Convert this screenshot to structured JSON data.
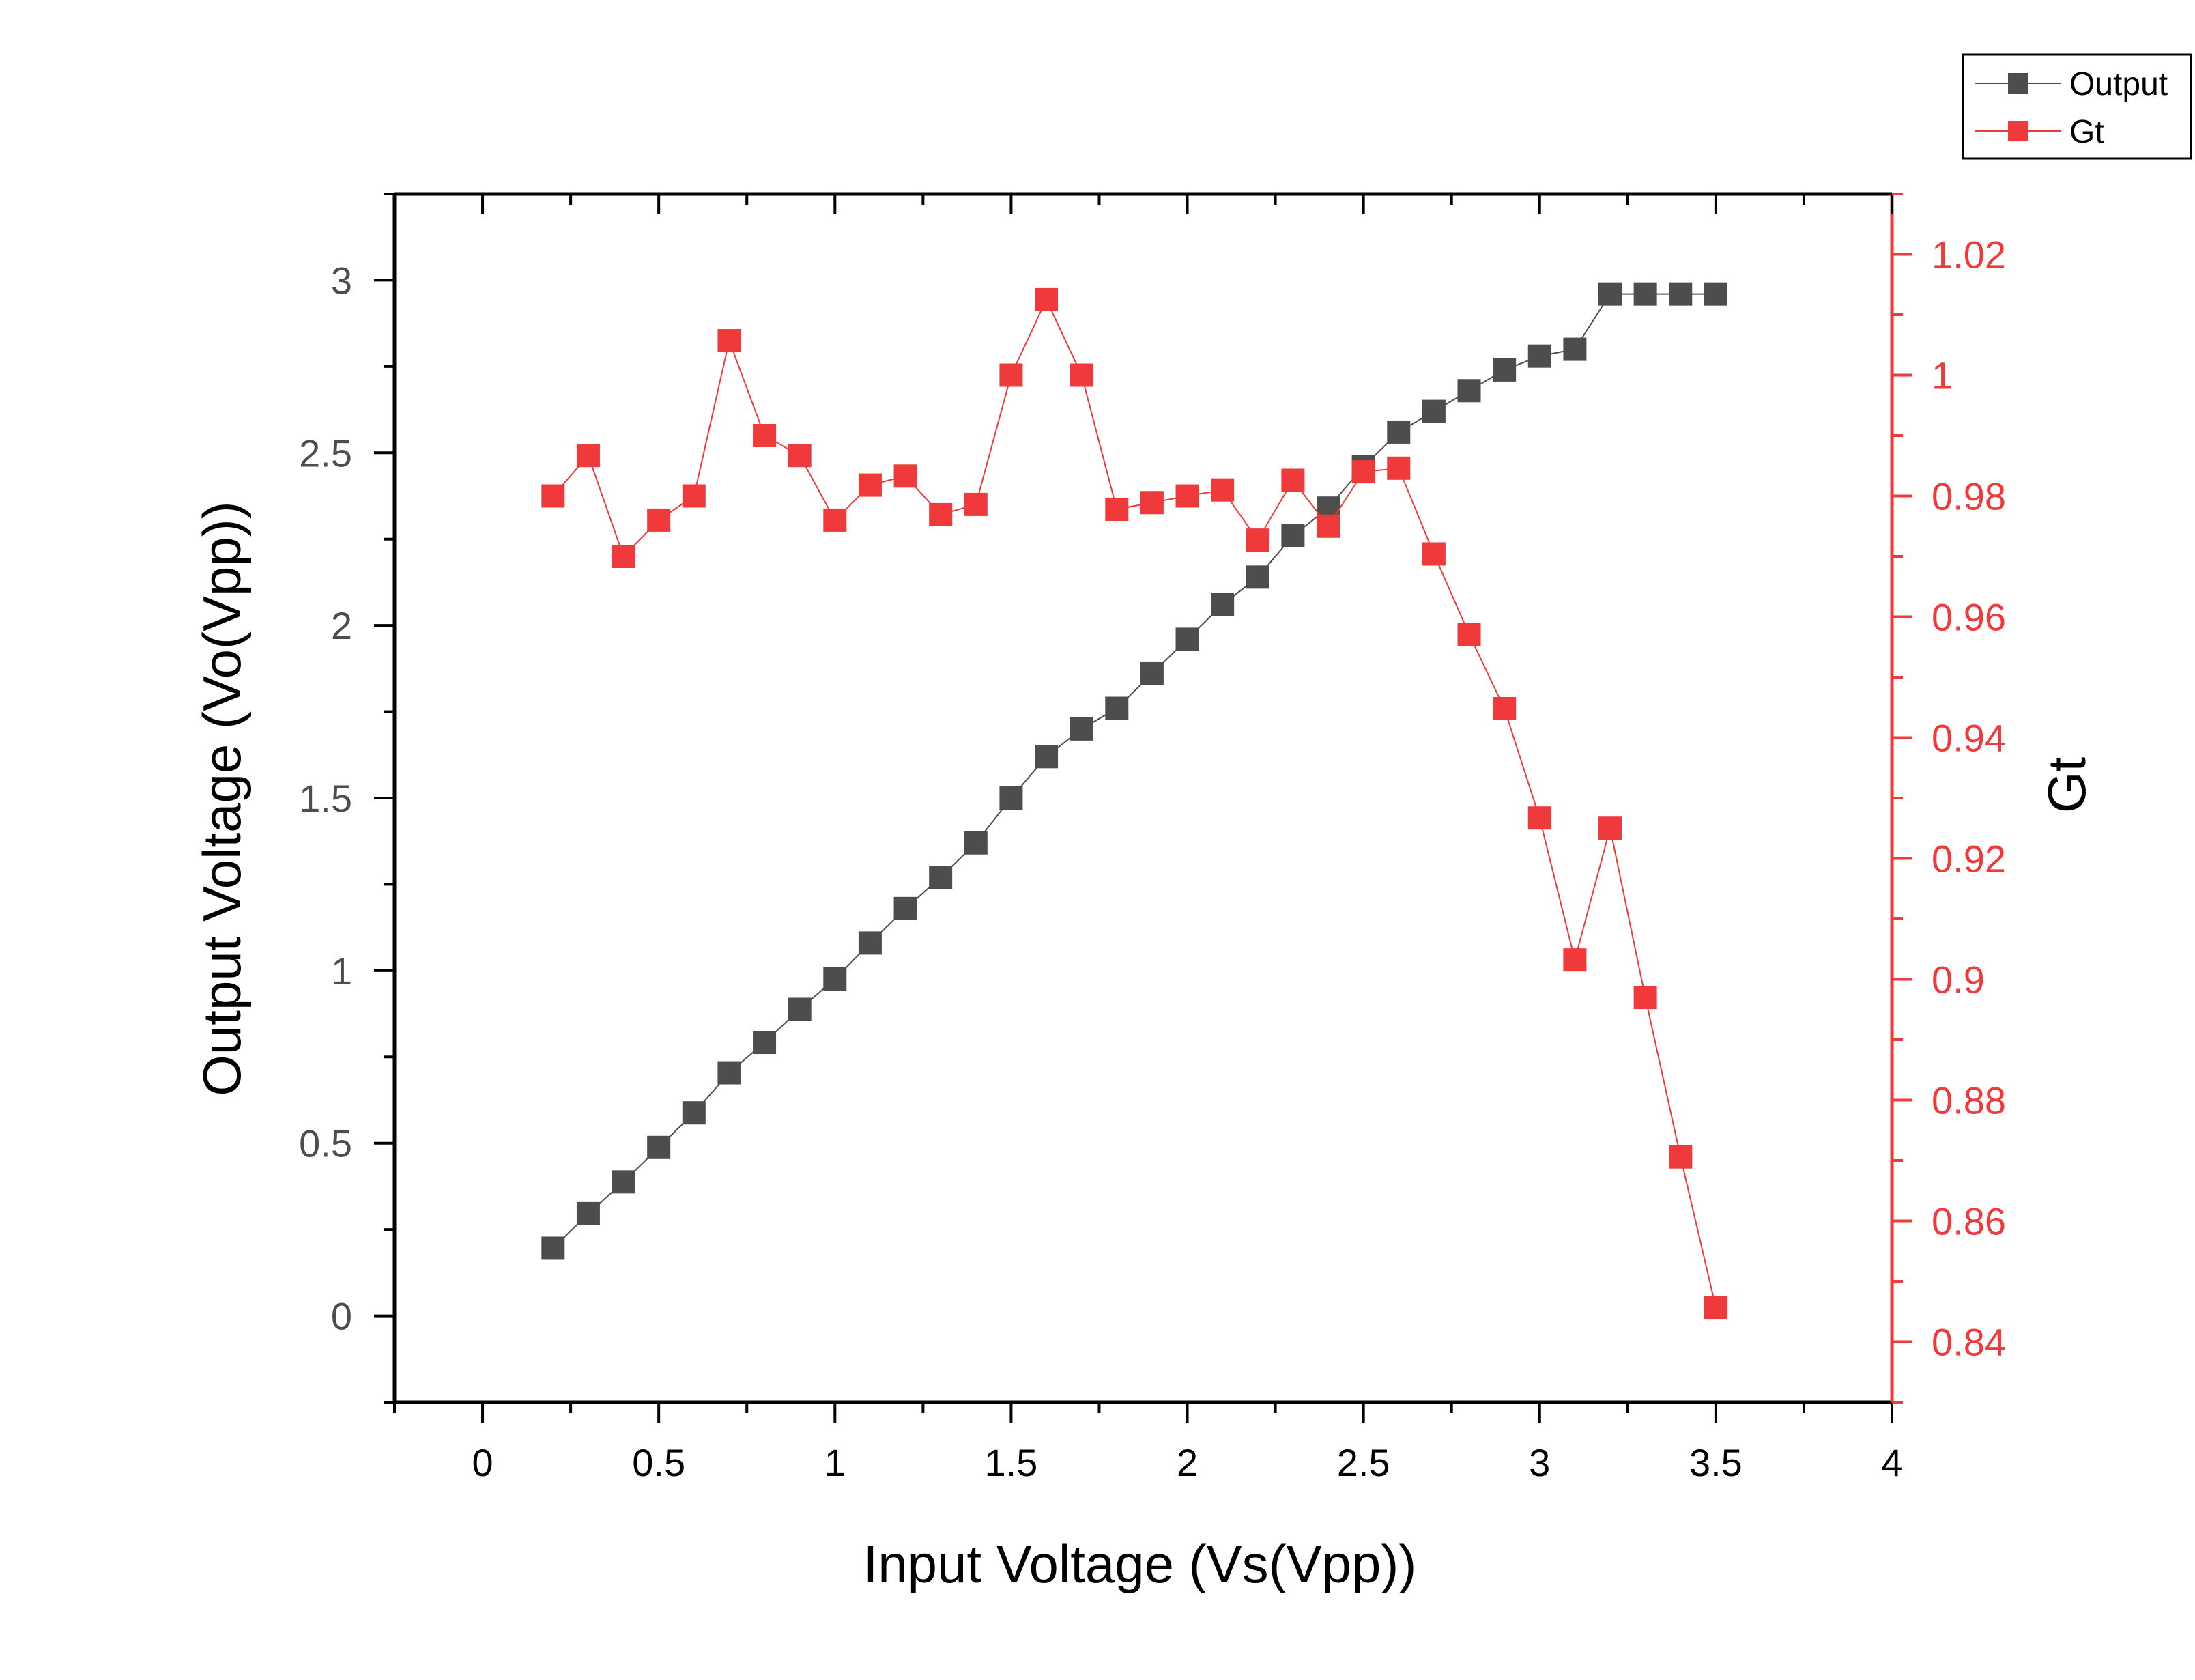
{
  "chart_data": {
    "type": "scatter",
    "title": "",
    "xlabel": "Input Voltage (Vs(Vpp))",
    "ylabel": "Output Voltage (Vo(Vpp))",
    "y2label": "Gt",
    "xlim": [
      -0.25,
      4
    ],
    "ylim": [
      -0.25,
      3.25
    ],
    "y2lim": [
      0.83,
      1.03
    ],
    "xticks": [
      "0",
      "0.5",
      "1",
      "1.5",
      "2",
      "2.5",
      "3",
      "3.5",
      "4"
    ],
    "yticks": [
      "0",
      "0.5",
      "1",
      "1.5",
      "2",
      "2.5",
      "3"
    ],
    "y2ticks": [
      "0.84",
      "0.86",
      "0.88",
      "0.9",
      "0.92",
      "0.94",
      "0.96",
      "0.98",
      "1",
      "1.02"
    ],
    "grid": false,
    "legend_position": "top-right",
    "x": [
      0.2,
      0.3,
      0.4,
      0.5,
      0.6,
      0.7,
      0.8,
      0.9,
      1.0,
      1.1,
      1.2,
      1.3,
      1.4,
      1.5,
      1.6,
      1.7,
      1.8,
      1.9,
      2.0,
      2.1,
      2.2,
      2.3,
      2.4,
      2.5,
      2.6,
      2.7,
      2.8,
      2.9,
      3.0,
      3.1,
      3.2,
      3.3,
      3.4,
      3.5
    ],
    "series": [
      {
        "name": "Output",
        "axis": "left",
        "color": "#4d4d4d",
        "values": [
          0.196,
          0.296,
          0.388,
          0.488,
          0.588,
          0.704,
          0.792,
          0.888,
          0.976,
          1.08,
          1.18,
          1.27,
          1.37,
          1.5,
          1.62,
          1.7,
          1.76,
          1.86,
          1.96,
          2.06,
          2.14,
          2.26,
          2.34,
          2.46,
          2.56,
          2.62,
          2.68,
          2.74,
          2.78,
          2.8,
          2.96,
          2.96,
          2.96,
          2.96
        ]
      },
      {
        "name": "Gt",
        "axis": "right",
        "color": "#f0393a",
        "values": [
          0.98,
          0.9867,
          0.97,
          0.976,
          0.98,
          1.0057,
          0.99,
          0.9867,
          0.976,
          0.9818,
          0.9833,
          0.9769,
          0.9786,
          1.0,
          1.0125,
          1.0,
          0.9778,
          0.9789,
          0.98,
          0.981,
          0.9727,
          0.9826,
          0.975,
          0.984,
          0.9846,
          0.9704,
          0.9571,
          0.9448,
          0.9267,
          0.9032,
          0.925,
          0.897,
          0.8706,
          0.8457
        ]
      }
    ]
  }
}
